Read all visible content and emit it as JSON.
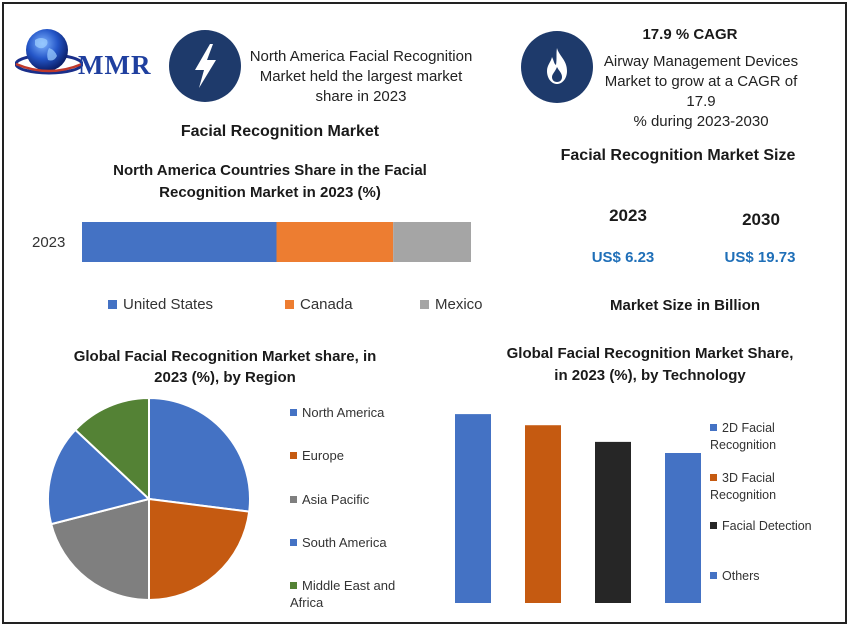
{
  "brand": {
    "logo_text": "MMR"
  },
  "highlights": [
    {
      "icon": "lightning-icon",
      "text_lines": [
        "North America Facial Recognition",
        "Market held the largest market",
        "share in 2023"
      ]
    },
    {
      "icon": "flame-icon",
      "title": "17.9 % CAGR",
      "text_lines": [
        "Airway Management Devices",
        "Market to grow at a CAGR of 17.9",
        "% during 2023-2030"
      ]
    }
  ],
  "market_title": "Facial Recognition Market",
  "market_size": {
    "title": "Facial Recognition Market Size",
    "years": [
      {
        "year": "2023",
        "value": "US$ 6.23"
      },
      {
        "year": "2030",
        "value": "US$ 19.73"
      }
    ],
    "unit_note": "Market Size in Billion"
  },
  "colors": {
    "blue": "#4472c4",
    "orange": "#ed7d31",
    "gray": "#a5a5a5",
    "dark_orange": "#c55a11",
    "black": "#262626",
    "green": "#548235",
    "pie_gray": "#7f7f7f",
    "navy_icon": "#1e3a6b",
    "value_blue": "#1f6fb8"
  },
  "chart_data": [
    {
      "type": "bar",
      "orientation": "horizontal-stacked",
      "title_lines": [
        "North America Countries Share in the Facial",
        "Recognition Market in 2023 (%)"
      ],
      "categories": [
        "2023"
      ],
      "series": [
        {
          "name": "United States",
          "values": [
            50
          ],
          "color": "#4472c4"
        },
        {
          "name": "Canada",
          "values": [
            30
          ],
          "color": "#ed7d31"
        },
        {
          "name": "Mexico",
          "values": [
            20
          ],
          "color": "#a5a5a5"
        }
      ],
      "legend": "bottom"
    },
    {
      "type": "pie",
      "title_lines": [
        "Global Facial Recognition Market share, in",
        "2023 (%), by Region"
      ],
      "slices": [
        {
          "label": "North America",
          "value": 27,
          "color": "#4472c4"
        },
        {
          "label": "Europe",
          "value": 23,
          "color": "#c55a11"
        },
        {
          "label": "Asia Pacific",
          "value": 21,
          "color": "#7f7f7f"
        },
        {
          "label": "South America",
          "value": 16,
          "color": "#4472c4"
        },
        {
          "label": "Middle East and Africa",
          "value": 13,
          "color": "#548235"
        }
      ],
      "legend": "right"
    },
    {
      "type": "bar",
      "title_lines": [
        "Global Facial Recognition Market Share,",
        "in 2023 (%), by Technology"
      ],
      "categories": [
        "2D Facial Recognition",
        "3D Facial Recognition",
        "Facial Detection",
        "Others"
      ],
      "values": [
        34,
        32,
        29,
        27
      ],
      "colors": [
        "#4472c4",
        "#c55a11",
        "#262626",
        "#4472c4"
      ],
      "ylim": [
        0,
        36
      ],
      "legend": "right"
    }
  ]
}
